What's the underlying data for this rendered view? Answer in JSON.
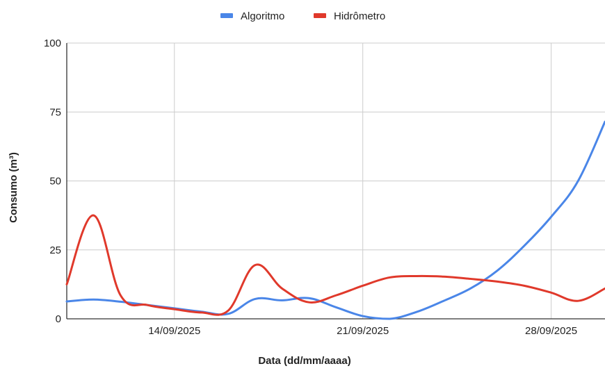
{
  "chart_data": {
    "type": "line",
    "xlabel": "Data (dd/mm/aaaa)",
    "ylabel": "Consumo (m³)",
    "ylim": [
      0,
      100
    ],
    "y_ticks": [
      "0",
      "25",
      "50",
      "75",
      "100"
    ],
    "x_range": [
      "10/09/2025",
      "30/09/2025"
    ],
    "x_ticks": [
      {
        "date": "14/09/2025",
        "label": "14/09/2025"
      },
      {
        "date": "21/09/2025",
        "label": "21/09/2025"
      },
      {
        "date": "28/09/2025",
        "label": "28/09/2025"
      }
    ],
    "grid": true,
    "legend_position": "top",
    "series": [
      {
        "name": "Algoritmo",
        "color": "#4a86e8",
        "points": [
          {
            "x": "10/09/2025",
            "y": 6.3
          },
          {
            "x": "11/09/2025",
            "y": 7.0
          },
          {
            "x": "12/09/2025",
            "y": 6.2
          },
          {
            "x": "13/09/2025",
            "y": 5.0
          },
          {
            "x": "14/09/2025",
            "y": 3.8
          },
          {
            "x": "15/09/2025",
            "y": 2.6
          },
          {
            "x": "16/09/2025",
            "y": 1.8
          },
          {
            "x": "17/09/2025",
            "y": 7.2
          },
          {
            "x": "18/09/2025",
            "y": 6.7
          },
          {
            "x": "19/09/2025",
            "y": 7.5
          },
          {
            "x": "20/09/2025",
            "y": 4.2
          },
          {
            "x": "21/09/2025",
            "y": 1.0
          },
          {
            "x": "22/09/2025",
            "y": 0.0
          },
          {
            "x": "23/09/2025",
            "y": 2.5
          },
          {
            "x": "24/09/2025",
            "y": 6.5
          },
          {
            "x": "25/09/2025",
            "y": 11.0
          },
          {
            "x": "26/09/2025",
            "y": 17.5
          },
          {
            "x": "27/09/2025",
            "y": 26.5
          },
          {
            "x": "28/09/2025",
            "y": 37.0
          },
          {
            "x": "29/09/2025",
            "y": 50.0
          },
          {
            "x": "30/09/2025",
            "y": 71.5
          }
        ]
      },
      {
        "name": "Hidrômetro",
        "color": "#e0392b",
        "points": [
          {
            "x": "10/09/2025",
            "y": 12.5
          },
          {
            "x": "11/09/2025",
            "y": 37.5
          },
          {
            "x": "12/09/2025",
            "y": 8.5
          },
          {
            "x": "13/09/2025",
            "y": 5.0
          },
          {
            "x": "14/09/2025",
            "y": 3.5
          },
          {
            "x": "15/09/2025",
            "y": 2.3
          },
          {
            "x": "16/09/2025",
            "y": 3.0
          },
          {
            "x": "17/09/2025",
            "y": 19.5
          },
          {
            "x": "18/09/2025",
            "y": 11.0
          },
          {
            "x": "19/09/2025",
            "y": 6.0
          },
          {
            "x": "20/09/2025",
            "y": 8.5
          },
          {
            "x": "21/09/2025",
            "y": 12.0
          },
          {
            "x": "22/09/2025",
            "y": 15.0
          },
          {
            "x": "23/09/2025",
            "y": 15.5
          },
          {
            "x": "24/09/2025",
            "y": 15.3
          },
          {
            "x": "25/09/2025",
            "y": 14.5
          },
          {
            "x": "26/09/2025",
            "y": 13.5
          },
          {
            "x": "27/09/2025",
            "y": 12.0
          },
          {
            "x": "28/09/2025",
            "y": 9.5
          },
          {
            "x": "29/09/2025",
            "y": 6.5
          },
          {
            "x": "30/09/2025",
            "y": 11.0
          }
        ]
      }
    ]
  }
}
